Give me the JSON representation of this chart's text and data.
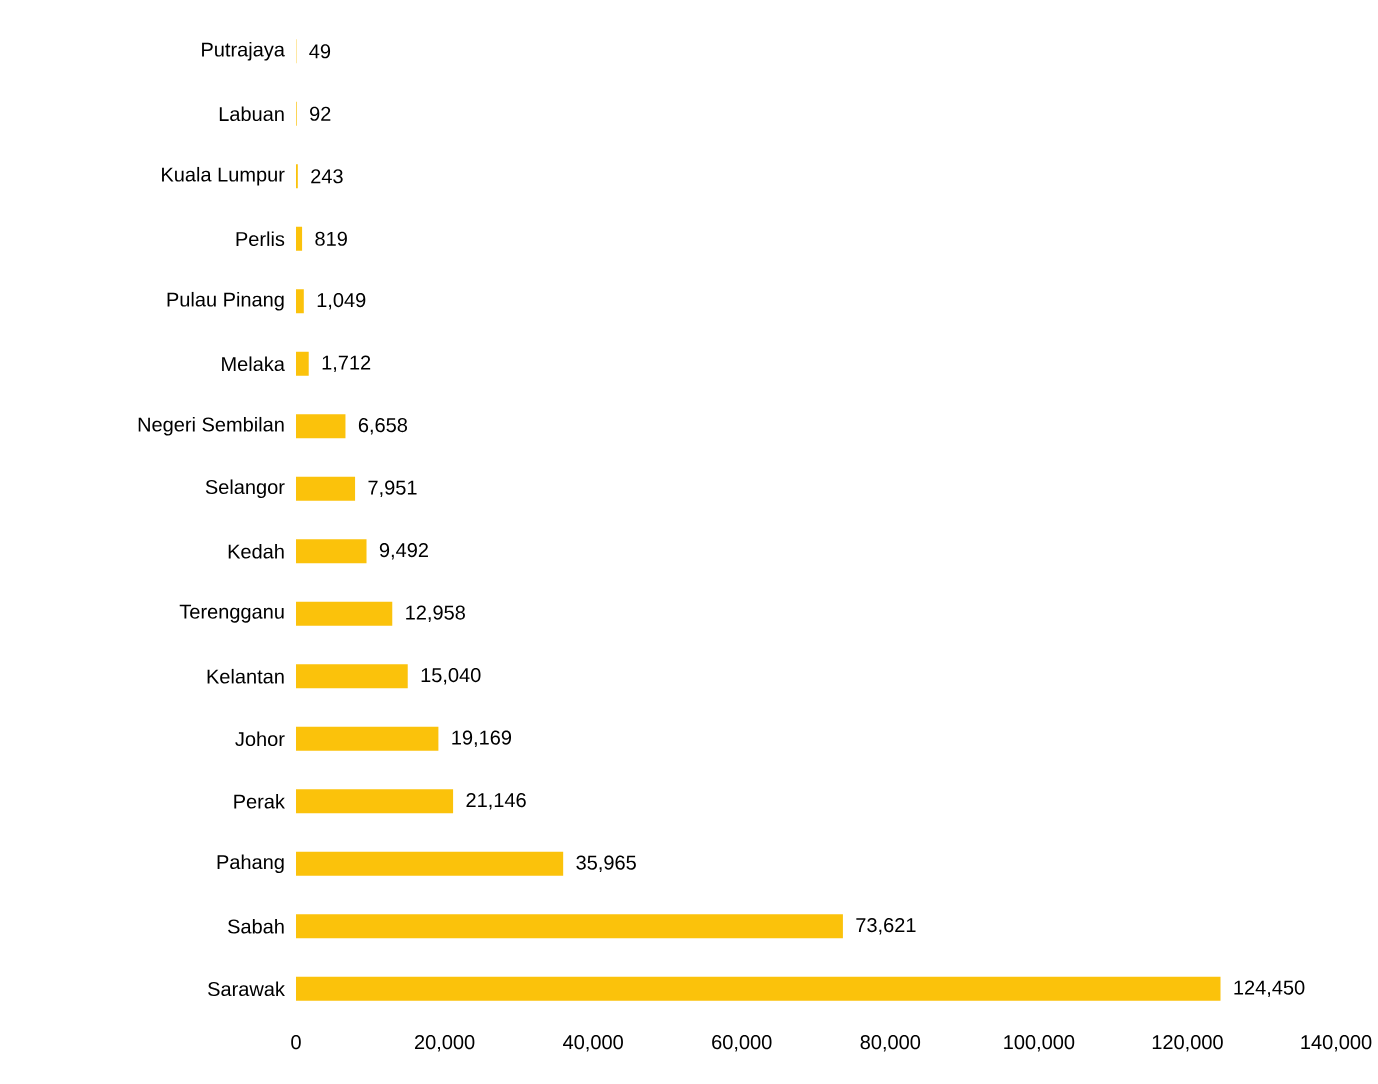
{
  "chart_data": {
    "type": "bar",
    "orientation": "horizontal",
    "categories": [
      "Putrajaya",
      "Labuan",
      "Kuala Lumpur",
      "Perlis",
      "Pulau Pinang",
      "Melaka",
      "Negeri Sembilan",
      "Selangor",
      "Kedah",
      "Terengganu",
      "Kelantan",
      "Johor",
      "Perak",
      "Pahang",
      "Sabah",
      "Sarawak"
    ],
    "values": [
      49,
      92,
      243,
      819,
      1049,
      1712,
      6658,
      7951,
      9492,
      12958,
      15040,
      19169,
      21146,
      35965,
      73621,
      124450
    ],
    "value_labels": [
      "49",
      "92",
      "243",
      "819",
      "1,049",
      "1,712",
      "6,658",
      "7,951",
      "9,492",
      "12,958",
      "15,040",
      "19,169",
      "21,146",
      "35,965",
      "73,621",
      "124,450"
    ],
    "color": "#fbc20b",
    "xlim": [
      0,
      140000
    ],
    "xticks": [
      0,
      {
        "value": 20000,
        "label": "20,000"
      },
      {
        "value": 40000,
        "label": "40,000"
      },
      {
        "value": 60000,
        "label": "60,000"
      },
      {
        "value": 80000,
        "label": "80,000"
      },
      {
        "value": 100000,
        "label": "100,000"
      },
      {
        "value": 120000,
        "label": "120,000"
      },
      {
        "value": 140000,
        "label": "140,000"
      }
    ],
    "grid": false
  }
}
